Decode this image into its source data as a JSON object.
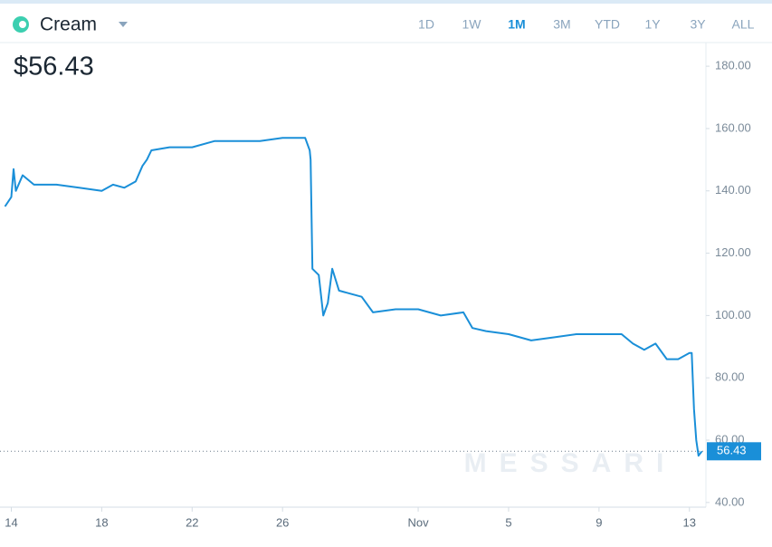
{
  "header": {
    "title": "Cream",
    "price": "$56.43",
    "ranges": [
      "1D",
      "1W",
      "1M",
      "3M",
      "YTD",
      "1Y",
      "3Y",
      "ALL"
    ],
    "selected": "1M"
  },
  "watermark": "MESSARI",
  "chart_data": {
    "type": "line",
    "series": [
      {
        "color": "#1a8fd8",
        "x": [
          -0.28,
          0.0,
          0.1,
          0.2,
          0.5,
          1,
          2,
          3,
          4,
          4.5,
          5,
          5.5,
          5.8,
          6,
          6.2,
          7,
          8,
          9,
          10,
          11,
          12,
          13,
          13.2,
          13.24,
          13.32,
          13.6,
          13.8,
          14,
          14.2,
          14.5,
          15,
          15.5,
          16,
          17,
          17.5,
          18,
          19,
          20,
          20.4,
          21,
          22,
          23,
          24,
          25,
          26,
          27,
          27.5,
          28,
          28.5,
          29,
          29.5,
          30.0,
          30.1,
          30.2,
          30.3,
          30.4,
          30.55
        ],
        "values": [
          135,
          138,
          147,
          140,
          145,
          142,
          142,
          141,
          140,
          142,
          141,
          143,
          148,
          150,
          153,
          154,
          154,
          156,
          156,
          156,
          157,
          157,
          153,
          150,
          115,
          113,
          100,
          104,
          115,
          108,
          107,
          106,
          101,
          102,
          102,
          102,
          100,
          101,
          96,
          95,
          94,
          92,
          93,
          94,
          94,
          94,
          91,
          89,
          91,
          86,
          86,
          88,
          88,
          70,
          60,
          55,
          56.43
        ],
        "value_labels_last": "56.43"
      }
    ],
    "xlim": [
      -0.3,
      30.65
    ],
    "xticks": [
      {
        "value": 0,
        "label": "14"
      },
      {
        "value": 4,
        "label": "18"
      },
      {
        "value": 8,
        "label": "22"
      },
      {
        "value": 12,
        "label": "26"
      },
      {
        "value": 18,
        "label": "Nov"
      },
      {
        "value": 22,
        "label": "5"
      },
      {
        "value": 26,
        "label": "9"
      },
      {
        "value": 30,
        "label": "13"
      }
    ],
    "ylim": [
      38.5,
      187.3
    ],
    "yticks": [
      {
        "value": 40,
        "label": "40.00"
      },
      {
        "value": 60,
        "label": "60.00"
      },
      {
        "value": 80,
        "label": "80.00"
      },
      {
        "value": 100,
        "label": "100.00"
      },
      {
        "value": 120,
        "label": "120.00"
      },
      {
        "value": 140,
        "label": "140.00"
      },
      {
        "value": 160,
        "label": "160.00"
      },
      {
        "value": 180,
        "label": "180.00"
      }
    ]
  }
}
